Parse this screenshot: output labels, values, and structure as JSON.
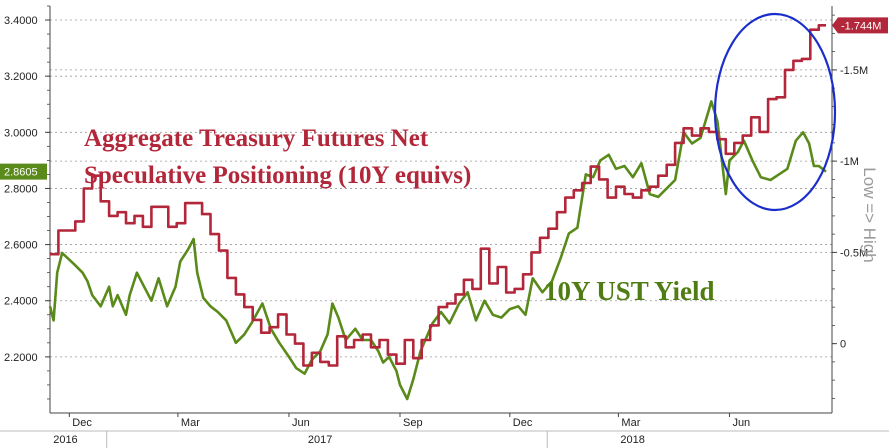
{
  "chart_data": {
    "type": "line",
    "x_range": [
      "2016-11-15",
      "2018-08-20"
    ],
    "left_axis": {
      "ticks": [
        2.2,
        2.4,
        2.6,
        2.8,
        3.0,
        3.2,
        3.4
      ],
      "tick_labels": [
        "2.2000",
        "2.4000",
        "2.6000",
        "2.8000",
        "3.0000",
        "3.2000",
        "3.4000"
      ],
      "range": [
        2.0,
        3.45
      ]
    },
    "right_axis": {
      "ticks": [
        0,
        0.5,
        1.0,
        1.5
      ],
      "tick_labels": [
        "0",
        "-0.5M",
        "-1M",
        "-1.5M"
      ],
      "range": [
        -0.38,
        1.85
      ],
      "title": "Low => High"
    },
    "x_axis": {
      "month_labels": [
        {
          "date": "2016-12-01",
          "label": "Dec"
        },
        {
          "date": "2017-03-01",
          "label": "Mar"
        },
        {
          "date": "2017-06-01",
          "label": "Jun"
        },
        {
          "date": "2017-09-01",
          "label": "Sep"
        },
        {
          "date": "2017-12-01",
          "label": "Dec"
        },
        {
          "date": "2018-03-01",
          "label": "Mar"
        },
        {
          "date": "2018-06-01",
          "label": "Jun"
        }
      ],
      "year_labels": [
        {
          "date": "2016-11-16",
          "label": "2016"
        },
        {
          "date": "2017-06-15",
          "label": "2017"
        },
        {
          "date": "2018-03-01",
          "label": "2018"
        }
      ]
    },
    "annotations": {
      "positioning_line1": "Aggregate Treasury Futures Net",
      "positioning_line2": "Speculative Positioning (10Y equivs)",
      "yield_label": "10Y UST Yield"
    },
    "last_value_badges": {
      "yield": "2.8605",
      "positioning": "-1.744M"
    },
    "colors": {
      "yield": "#5a8a1a",
      "positioning": "#b2273a",
      "circle": "#1a2ecc",
      "grid": "#9a9a9a"
    },
    "series": [
      {
        "name": "10Y UST Yield",
        "axis": "left",
        "points": [
          [
            "2016-11-15",
            2.38
          ],
          [
            "2016-11-18",
            2.33
          ],
          [
            "2016-11-21",
            2.5
          ],
          [
            "2016-11-25",
            2.57
          ],
          [
            "2016-11-30",
            2.55
          ],
          [
            "2016-12-05",
            2.53
          ],
          [
            "2016-12-12",
            2.5
          ],
          [
            "2016-12-16",
            2.47
          ],
          [
            "2016-12-20",
            2.42
          ],
          [
            "2016-12-27",
            2.38
          ],
          [
            "2017-01-03",
            2.45
          ],
          [
            "2017-01-06",
            2.38
          ],
          [
            "2017-01-10",
            2.42
          ],
          [
            "2017-01-17",
            2.35
          ],
          [
            "2017-01-20",
            2.42
          ],
          [
            "2017-01-26",
            2.5
          ],
          [
            "2017-02-01",
            2.45
          ],
          [
            "2017-02-07",
            2.4
          ],
          [
            "2017-02-13",
            2.48
          ],
          [
            "2017-02-20",
            2.38
          ],
          [
            "2017-02-27",
            2.45
          ],
          [
            "2017-03-03",
            2.54
          ],
          [
            "2017-03-09",
            2.58
          ],
          [
            "2017-03-14",
            2.62
          ],
          [
            "2017-03-17",
            2.5
          ],
          [
            "2017-03-22",
            2.41
          ],
          [
            "2017-03-28",
            2.38
          ],
          [
            "2017-04-03",
            2.36
          ],
          [
            "2017-04-10",
            2.33
          ],
          [
            "2017-04-18",
            2.25
          ],
          [
            "2017-04-25",
            2.28
          ],
          [
            "2017-05-01",
            2.32
          ],
          [
            "2017-05-10",
            2.39
          ],
          [
            "2017-05-17",
            2.3
          ],
          [
            "2017-05-24",
            2.25
          ],
          [
            "2017-06-01",
            2.2
          ],
          [
            "2017-06-07",
            2.16
          ],
          [
            "2017-06-14",
            2.14
          ],
          [
            "2017-06-20",
            2.19
          ],
          [
            "2017-06-27",
            2.22
          ],
          [
            "2017-07-03",
            2.28
          ],
          [
            "2017-07-07",
            2.39
          ],
          [
            "2017-07-12",
            2.34
          ],
          [
            "2017-07-18",
            2.26
          ],
          [
            "2017-07-26",
            2.3
          ],
          [
            "2017-08-01",
            2.26
          ],
          [
            "2017-08-08",
            2.26
          ],
          [
            "2017-08-14",
            2.22
          ],
          [
            "2017-08-18",
            2.18
          ],
          [
            "2017-08-23",
            2.2
          ],
          [
            "2017-08-29",
            2.15
          ],
          [
            "2017-09-01",
            2.1
          ],
          [
            "2017-09-07",
            2.05
          ],
          [
            "2017-09-12",
            2.12
          ],
          [
            "2017-09-18",
            2.22
          ],
          [
            "2017-09-22",
            2.26
          ],
          [
            "2017-09-28",
            2.32
          ],
          [
            "2017-10-05",
            2.36
          ],
          [
            "2017-10-12",
            2.32
          ],
          [
            "2017-10-20",
            2.39
          ],
          [
            "2017-10-27",
            2.43
          ],
          [
            "2017-11-03",
            2.33
          ],
          [
            "2017-11-10",
            2.4
          ],
          [
            "2017-11-17",
            2.35
          ],
          [
            "2017-11-24",
            2.34
          ],
          [
            "2017-12-01",
            2.37
          ],
          [
            "2017-12-08",
            2.38
          ],
          [
            "2017-12-14",
            2.35
          ],
          [
            "2017-12-20",
            2.48
          ],
          [
            "2017-12-28",
            2.43
          ],
          [
            "2018-01-05",
            2.47
          ],
          [
            "2018-01-12",
            2.55
          ],
          [
            "2018-01-19",
            2.64
          ],
          [
            "2018-01-26",
            2.66
          ],
          [
            "2018-02-02",
            2.85
          ],
          [
            "2018-02-08",
            2.84
          ],
          [
            "2018-02-14",
            2.9
          ],
          [
            "2018-02-21",
            2.92
          ],
          [
            "2018-02-27",
            2.87
          ],
          [
            "2018-03-06",
            2.88
          ],
          [
            "2018-03-13",
            2.84
          ],
          [
            "2018-03-20",
            2.89
          ],
          [
            "2018-03-27",
            2.78
          ],
          [
            "2018-04-03",
            2.77
          ],
          [
            "2018-04-10",
            2.8
          ],
          [
            "2018-04-17",
            2.83
          ],
          [
            "2018-04-24",
            3.0
          ],
          [
            "2018-05-01",
            2.96
          ],
          [
            "2018-05-08",
            2.98
          ],
          [
            "2018-05-15",
            3.08
          ],
          [
            "2018-05-17",
            3.11
          ],
          [
            "2018-05-22",
            3.04
          ],
          [
            "2018-05-29",
            2.78
          ],
          [
            "2018-06-01",
            2.9
          ],
          [
            "2018-06-08",
            2.93
          ],
          [
            "2018-06-13",
            2.97
          ],
          [
            "2018-06-20",
            2.9
          ],
          [
            "2018-06-27",
            2.84
          ],
          [
            "2018-07-05",
            2.83
          ],
          [
            "2018-07-12",
            2.85
          ],
          [
            "2018-07-19",
            2.87
          ],
          [
            "2018-07-26",
            2.97
          ],
          [
            "2018-08-01",
            3.0
          ],
          [
            "2018-08-06",
            2.96
          ],
          [
            "2018-08-10",
            2.88
          ],
          [
            "2018-08-14",
            2.88
          ],
          [
            "2018-08-20",
            2.86
          ]
        ]
      },
      {
        "name": "Aggregate Treasury Futures Net Speculative Positioning (10Y equivs)",
        "axis": "right",
        "step": true,
        "points": [
          [
            "2016-11-15",
            0.49
          ],
          [
            "2016-11-22",
            0.62
          ],
          [
            "2016-11-29",
            0.62
          ],
          [
            "2016-12-06",
            0.67
          ],
          [
            "2016-12-13",
            0.85
          ],
          [
            "2016-12-20",
            0.92
          ],
          [
            "2016-12-27",
            0.78
          ],
          [
            "2017-01-03",
            0.7
          ],
          [
            "2017-01-10",
            0.72
          ],
          [
            "2017-01-17",
            0.66
          ],
          [
            "2017-01-24",
            0.7
          ],
          [
            "2017-01-31",
            0.64
          ],
          [
            "2017-02-07",
            0.75
          ],
          [
            "2017-02-14",
            0.75
          ],
          [
            "2017-02-21",
            0.64
          ],
          [
            "2017-02-28",
            0.66
          ],
          [
            "2017-03-07",
            0.77
          ],
          [
            "2017-03-14",
            0.77
          ],
          [
            "2017-03-21",
            0.71
          ],
          [
            "2017-03-28",
            0.6
          ],
          [
            "2017-04-04",
            0.51
          ],
          [
            "2017-04-11",
            0.36
          ],
          [
            "2017-04-18",
            0.27
          ],
          [
            "2017-04-25",
            0.2
          ],
          [
            "2017-05-02",
            0.13
          ],
          [
            "2017-05-09",
            0.06
          ],
          [
            "2017-05-16",
            0.09
          ],
          [
            "2017-05-23",
            0.16
          ],
          [
            "2017-05-30",
            0.05
          ],
          [
            "2017-06-06",
            0.0
          ],
          [
            "2017-06-13",
            -0.12
          ],
          [
            "2017-06-20",
            -0.05
          ],
          [
            "2017-06-27",
            -0.1
          ],
          [
            "2017-07-04",
            -0.12
          ],
          [
            "2017-07-11",
            0.04
          ],
          [
            "2017-07-18",
            -0.02
          ],
          [
            "2017-07-25",
            0.02
          ],
          [
            "2017-08-01",
            0.05
          ],
          [
            "2017-08-08",
            -0.02
          ],
          [
            "2017-08-15",
            0.02
          ],
          [
            "2017-08-22",
            -0.06
          ],
          [
            "2017-08-29",
            -0.11
          ],
          [
            "2017-09-05",
            0.02
          ],
          [
            "2017-09-12",
            -0.08
          ],
          [
            "2017-09-19",
            0.02
          ],
          [
            "2017-09-26",
            0.1
          ],
          [
            "2017-10-03",
            0.2
          ],
          [
            "2017-10-10",
            0.22
          ],
          [
            "2017-10-17",
            0.27
          ],
          [
            "2017-10-24",
            0.35
          ],
          [
            "2017-10-31",
            0.3
          ],
          [
            "2017-11-07",
            0.52
          ],
          [
            "2017-11-14",
            0.33
          ],
          [
            "2017-11-21",
            0.42
          ],
          [
            "2017-11-28",
            0.28
          ],
          [
            "2017-12-05",
            0.3
          ],
          [
            "2017-12-12",
            0.38
          ],
          [
            "2017-12-19",
            0.5
          ],
          [
            "2017-12-26",
            0.58
          ],
          [
            "2018-01-02",
            0.63
          ],
          [
            "2018-01-09",
            0.72
          ],
          [
            "2018-01-16",
            0.8
          ],
          [
            "2018-01-23",
            0.84
          ],
          [
            "2018-01-30",
            0.88
          ],
          [
            "2018-02-06",
            0.97
          ],
          [
            "2018-02-13",
            0.9
          ],
          [
            "2018-02-20",
            0.8
          ],
          [
            "2018-02-27",
            0.86
          ],
          [
            "2018-03-06",
            0.82
          ],
          [
            "2018-03-13",
            0.8
          ],
          [
            "2018-03-20",
            0.84
          ],
          [
            "2018-03-27",
            0.86
          ],
          [
            "2018-04-03",
            0.92
          ],
          [
            "2018-04-10",
            0.98
          ],
          [
            "2018-04-17",
            1.1
          ],
          [
            "2018-04-24",
            1.18
          ],
          [
            "2018-05-01",
            1.14
          ],
          [
            "2018-05-08",
            1.18
          ],
          [
            "2018-05-15",
            1.16
          ],
          [
            "2018-05-22",
            1.12
          ],
          [
            "2018-05-29",
            1.04
          ],
          [
            "2018-06-05",
            1.1
          ],
          [
            "2018-06-12",
            1.14
          ],
          [
            "2018-06-19",
            1.24
          ],
          [
            "2018-06-26",
            1.16
          ],
          [
            "2018-07-03",
            1.34
          ],
          [
            "2018-07-10",
            1.35
          ],
          [
            "2018-07-17",
            1.5
          ],
          [
            "2018-07-24",
            1.55
          ],
          [
            "2018-07-31",
            1.56
          ],
          [
            "2018-08-07",
            1.72
          ],
          [
            "2018-08-14",
            1.744
          ],
          [
            "2018-08-20",
            1.744
          ]
        ]
      }
    ]
  }
}
